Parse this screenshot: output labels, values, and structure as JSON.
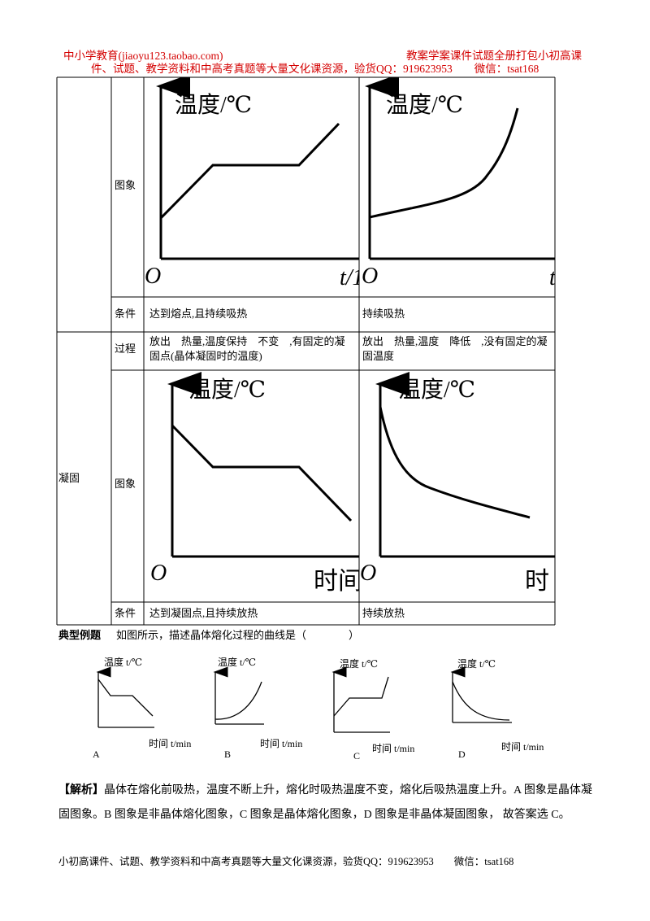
{
  "header": {
    "left": "中小学教育(jiaoyu123.taobao.com)",
    "right": "教案学案课件试题全册打包小初高课",
    "line2": "件、试题、教学资料和中高考真题等大量文化课资源，验货QQ：919623953　　微信：tsat168"
  },
  "table": {
    "melting": {
      "image_label": "图象",
      "graphs": [
        {
          "y_label": "温度/℃",
          "origin": "O",
          "x_label": "t/1"
        },
        {
          "y_label": "温度/℃",
          "origin": "O",
          "x_label": "t"
        }
      ],
      "condition_label": "条件",
      "conditions": [
        "达到熔点,且持续吸热",
        "持续吸热"
      ]
    },
    "solidification": {
      "name": "凝固",
      "process_label": "过程",
      "processes": [
        "放出　热量,温度保持　不变　,有固定的凝固点(晶体凝固时的温度)",
        "放出　热量,温度　降低　,没有固定的凝固温度"
      ],
      "image_label": "图象",
      "graphs": [
        {
          "y_label": "温度/℃",
          "origin": "O",
          "x_label": "时间"
        },
        {
          "y_label": "温度/℃",
          "origin": "O",
          "x_label": "时"
        }
      ],
      "condition_label": "条件",
      "conditions": [
        "达到凝固点,且持续放热",
        "持续放热"
      ]
    }
  },
  "example": {
    "title": "典型例题",
    "question": "如图所示，描述晶体熔化过程的曲线是（　　　　）",
    "options": [
      {
        "letter": "A",
        "y_label": "温度 t/℃",
        "x_label": "时间 t/min"
      },
      {
        "letter": "B",
        "y_label": "温度 t/℃",
        "x_label": "时间 t/min"
      },
      {
        "letter": "C",
        "y_label": "温度 t/℃",
        "x_label": "时间 t/min"
      },
      {
        "letter": "D",
        "y_label": "温度 t/℃",
        "x_label": "时间 t/min"
      }
    ]
  },
  "analysis": {
    "label": "【解析】",
    "text": "晶体在熔化前吸热，温度不断上升，熔化时吸热温度不变，熔化后吸热温度上升。A 图象是晶体凝固图象。B 图象是非晶体熔化图象，C 图象是晶体熔化图象，D 图象是非晶体凝固图象， 故答案选 C。"
  },
  "footer": "小初高课件、试题、教学资料和中高考真题等大量文化课资源，验货QQ：919623953　　微信：tsat168"
}
